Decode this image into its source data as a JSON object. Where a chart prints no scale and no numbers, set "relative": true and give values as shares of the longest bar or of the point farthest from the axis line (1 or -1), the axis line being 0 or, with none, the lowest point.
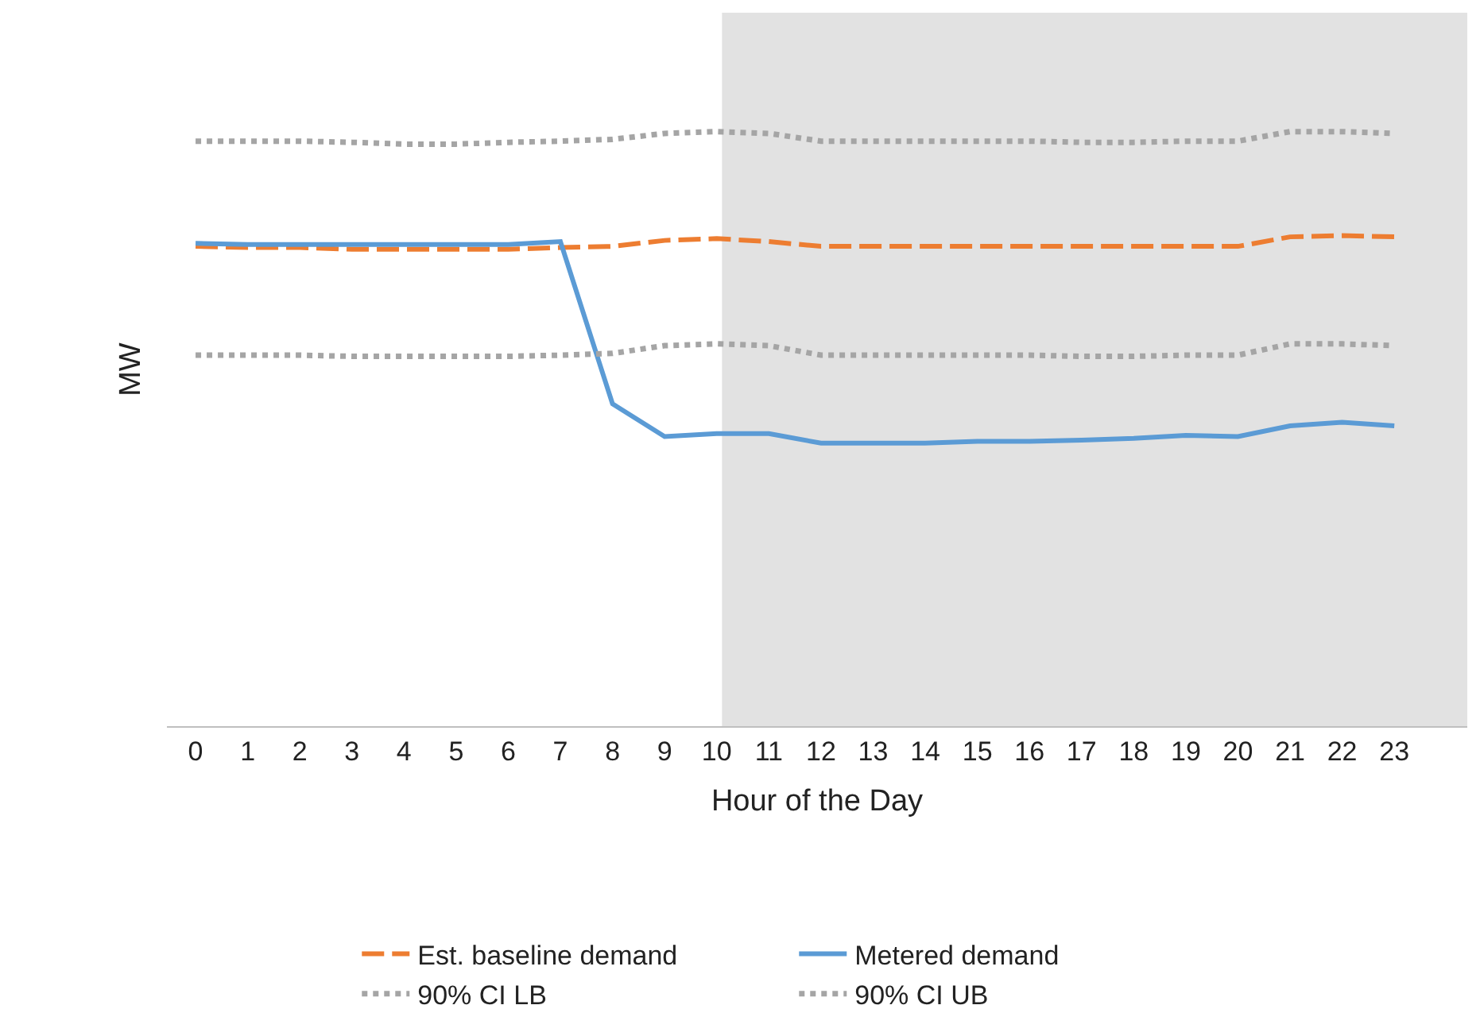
{
  "chart_data": {
    "type": "line",
    "relative": true,
    "xlabel": "Hour of the Day",
    "ylabel": "MW",
    "legend": "bottom",
    "grid": false,
    "marker": "none",
    "x": [
      0,
      1,
      2,
      3,
      4,
      5,
      6,
      7,
      8,
      9,
      10,
      11,
      12,
      13,
      14,
      15,
      16,
      17,
      18,
      19,
      20,
      21,
      22,
      23
    ],
    "xlim": [
      -0.55,
      24.4
    ],
    "xticks": [
      0,
      1,
      2,
      3,
      4,
      5,
      6,
      7,
      8,
      9,
      10,
      11,
      12,
      13,
      14,
      15,
      16,
      17,
      18,
      19,
      20,
      21,
      22,
      23
    ],
    "bands": [
      {
        "axis": "x",
        "from": 10.1,
        "to": 24.4,
        "color": "#e2e2e2"
      }
    ],
    "series": [
      {
        "name": "Est. baseline demand",
        "color": "#ed7d31",
        "line_style": "dashed",
        "values": [
          0.807,
          0.805,
          0.805,
          0.802,
          0.802,
          0.802,
          0.802,
          0.805,
          0.807,
          0.817,
          0.82,
          0.815,
          0.807,
          0.807,
          0.807,
          0.807,
          0.807,
          0.807,
          0.807,
          0.807,
          0.807,
          0.823,
          0.825,
          0.823
        ]
      },
      {
        "name": "Metered demand",
        "color": "#5b9bd5",
        "line_style": "solid",
        "values": [
          0.812,
          0.81,
          0.81,
          0.81,
          0.81,
          0.81,
          0.81,
          0.815,
          0.542,
          0.487,
          0.492,
          0.492,
          0.476,
          0.476,
          0.476,
          0.479,
          0.479,
          0.481,
          0.484,
          0.489,
          0.487,
          0.505,
          0.511,
          0.505
        ]
      },
      {
        "name": "90% CI LB",
        "color": "#a5a5a5",
        "line_style": "dotted",
        "values": [
          0.624,
          0.624,
          0.624,
          0.622,
          0.622,
          0.622,
          0.622,
          0.624,
          0.627,
          0.64,
          0.643,
          0.64,
          0.624,
          0.624,
          0.624,
          0.624,
          0.624,
          0.622,
          0.622,
          0.624,
          0.624,
          0.643,
          0.643,
          0.64
        ]
      },
      {
        "name": "90% CI UB",
        "color": "#a5a5a5",
        "line_style": "dotted",
        "values": [
          0.984,
          0.984,
          0.984,
          0.982,
          0.979,
          0.979,
          0.982,
          0.984,
          0.987,
          0.997,
          1.0,
          0.997,
          0.984,
          0.984,
          0.984,
          0.984,
          0.984,
          0.982,
          0.982,
          0.984,
          0.984,
          1.0,
          1.0,
          0.997
        ]
      }
    ]
  }
}
